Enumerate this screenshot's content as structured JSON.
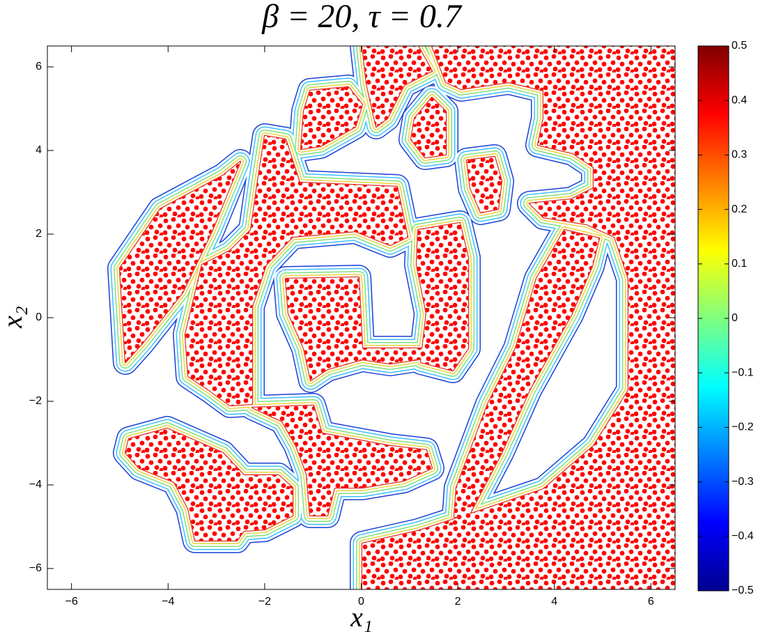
{
  "chart_data": {
    "type": "contour",
    "title": "β = 20, τ = 0.7",
    "x_label": "x₁",
    "y_label": "x₂",
    "xlim": [
      -6.5,
      6.5
    ],
    "ylim": [
      -6.5,
      6.5
    ],
    "xticks": [
      {
        "value": -6,
        "label": "−6"
      },
      {
        "value": -4,
        "label": "−4"
      },
      {
        "value": -2,
        "label": "−2"
      },
      0,
      2,
      4,
      6
    ],
    "yticks": [
      {
        "value": -6,
        "label": "−6"
      },
      {
        "value": -4,
        "label": "−4"
      },
      {
        "value": -2,
        "label": "−2"
      },
      0,
      2,
      4,
      6
    ],
    "colormap": "jet",
    "clim": [
      -0.5,
      0.5
    ],
    "cticks": [
      {
        "value": -0.5,
        "label": "−0.5"
      },
      {
        "value": -0.4,
        "label": "−0.4"
      },
      {
        "value": -0.3,
        "label": "−0.3"
      },
      {
        "value": -0.2,
        "label": "−0.2"
      },
      {
        "value": -0.1,
        "label": "−0.1"
      },
      0,
      0.1,
      0.2,
      0.3,
      0.4,
      0.5
    ],
    "point_color": "#ff0000"
  }
}
